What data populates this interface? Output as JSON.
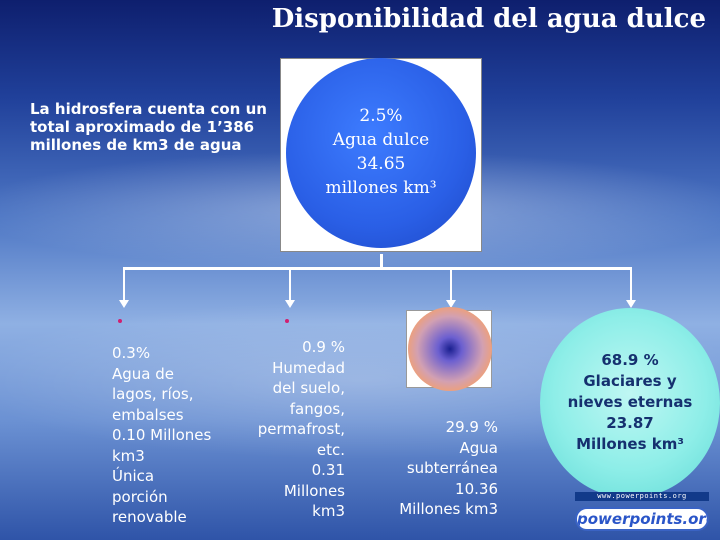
{
  "title": "Disponibilidad del agua dulce",
  "intro": [
    "La hidrosfera cuenta con un",
    "total aproximado de 1’386",
    "millones de km3 de agua"
  ],
  "top": [
    "2.5%",
    "Agua dulce",
    "34.65",
    "millones km³"
  ],
  "surface": [
    "0.3%",
    "Agua de",
    "lagos, ríos,",
    "embalses",
    "0.10 Millones",
    "km3",
    "Única",
    "porción",
    "renovable"
  ],
  "humidity": [
    "0.9 %",
    "Humedad",
    "del suelo,",
    "fangos,",
    "permafrost,",
    "etc.",
    "0.31",
    "Millones",
    "km3"
  ],
  "groundwater": [
    "29.9 %",
    "Agua",
    "subterránea",
    "10.36",
    "Millones km3"
  ],
  "glaciers": [
    "68.9 %",
    "Glaciares y",
    "nieves eternas",
    "23.87",
    "Millones km³"
  ],
  "footer": {
    "url": "www.powerpoints.org",
    "logo": "powerpoints.org"
  },
  "colors": {
    "top_circle": "#2a5fe6",
    "glacier_circle": "#8eeee8",
    "ground_outer": "#f59a64",
    "ground_inner": "#1a1f8f",
    "bullet": "#d02070"
  }
}
